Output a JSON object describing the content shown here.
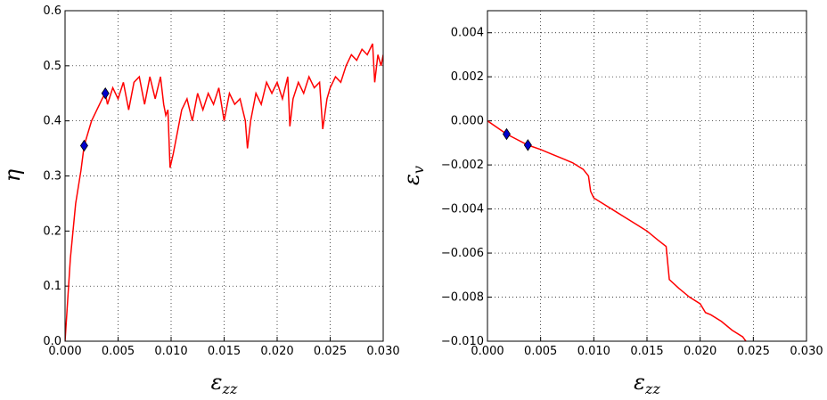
{
  "chart_data": [
    {
      "type": "line",
      "ylabel": "η",
      "xlabel": {
        "main": "ε",
        "sub": "zz"
      },
      "color": "#ff0000",
      "marker_color": "#0000cc",
      "grid": true,
      "xlim": [
        0,
        0.03
      ],
      "ylim": [
        0,
        0.6
      ],
      "xticks": [
        {
          "value": 0,
          "label": "0.000"
        },
        {
          "value": 0.005,
          "label": "0.005"
        },
        {
          "value": 0.01,
          "label": "0.010"
        },
        {
          "value": 0.015,
          "label": "0.015"
        },
        {
          "value": 0.02,
          "label": "0.020"
        },
        {
          "value": 0.025,
          "label": "0.025"
        },
        {
          "value": 0.03,
          "label": "0.030"
        }
      ],
      "yticks": [
        {
          "value": 0,
          "label": "0.0"
        },
        0.1,
        0.2,
        0.3,
        0.4,
        0.5,
        0.6
      ],
      "x": [
        0,
        0.0005,
        0.001,
        0.0015,
        0.0018,
        0.0025,
        0.003,
        0.0035,
        0.0038,
        0.004,
        0.0045,
        0.005,
        0.0055,
        0.006,
        0.0065,
        0.007,
        0.0075,
        0.008,
        0.0085,
        0.009,
        0.0093,
        0.0095,
        0.0097,
        0.0099,
        0.0102,
        0.0105,
        0.011,
        0.0115,
        0.012,
        0.0125,
        0.013,
        0.0135,
        0.014,
        0.0145,
        0.015,
        0.0155,
        0.016,
        0.0165,
        0.017,
        0.0172,
        0.0175,
        0.018,
        0.0185,
        0.019,
        0.0195,
        0.02,
        0.0205,
        0.021,
        0.0212,
        0.0215,
        0.022,
        0.0225,
        0.023,
        0.0235,
        0.024,
        0.0243,
        0.0247,
        0.025,
        0.0255,
        0.026,
        0.0265,
        0.027,
        0.0275,
        0.028,
        0.0285,
        0.029,
        0.0292,
        0.0295,
        0.0298,
        0.03
      ],
      "values": [
        0,
        0.15,
        0.25,
        0.31,
        0.355,
        0.4,
        0.42,
        0.44,
        0.45,
        0.43,
        0.46,
        0.44,
        0.47,
        0.42,
        0.47,
        0.48,
        0.43,
        0.48,
        0.44,
        0.48,
        0.43,
        0.41,
        0.42,
        0.315,
        0.34,
        0.37,
        0.42,
        0.44,
        0.4,
        0.45,
        0.42,
        0.45,
        0.43,
        0.46,
        0.4,
        0.45,
        0.43,
        0.44,
        0.4,
        0.35,
        0.4,
        0.45,
        0.43,
        0.47,
        0.45,
        0.47,
        0.44,
        0.48,
        0.39,
        0.44,
        0.47,
        0.45,
        0.48,
        0.46,
        0.47,
        0.385,
        0.44,
        0.46,
        0.48,
        0.47,
        0.5,
        0.52,
        0.51,
        0.53,
        0.52,
        0.54,
        0.47,
        0.52,
        0.5,
        0.52
      ],
      "markers": {
        "x": [
          0.0018,
          0.0038
        ],
        "values": [
          0.355,
          0.45
        ]
      }
    },
    {
      "type": "line",
      "ylabel": {
        "main": "ε",
        "sub": "v"
      },
      "xlabel": {
        "main": "ε",
        "sub": "zz"
      },
      "color": "#ff0000",
      "marker_color": "#0000cc",
      "grid": true,
      "xlim": [
        0,
        0.03
      ],
      "ylim": [
        -0.01,
        0.005
      ],
      "xticks": [
        {
          "value": 0,
          "label": "0.000"
        },
        {
          "value": 0.005,
          "label": "0.005"
        },
        {
          "value": 0.01,
          "label": "0.010"
        },
        {
          "value": 0.015,
          "label": "0.015"
        },
        {
          "value": 0.02,
          "label": "0.020"
        },
        {
          "value": 0.025,
          "label": "0.025"
        },
        {
          "value": 0.03,
          "label": "0.030"
        }
      ],
      "yticks": [
        {
          "value": -0.01,
          "label": "−0.010"
        },
        {
          "value": -0.008,
          "label": "−0.008"
        },
        {
          "value": -0.006,
          "label": "−0.006"
        },
        {
          "value": -0.004,
          "label": "−0.004"
        },
        {
          "value": -0.002,
          "label": "−0.002"
        },
        {
          "value": 0,
          "label": "0.000"
        },
        0.002,
        0.004
      ],
      "x": [
        0,
        0.0018,
        0.0038,
        0.005,
        0.006,
        0.007,
        0.008,
        0.009,
        0.0095,
        0.0097,
        0.01,
        0.011,
        0.012,
        0.013,
        0.014,
        0.015,
        0.016,
        0.0168,
        0.0171,
        0.018,
        0.019,
        0.02,
        0.0205,
        0.021,
        0.022,
        0.023,
        0.024,
        0.0243
      ],
      "values": [
        0,
        -0.0006,
        -0.0011,
        -0.0013,
        -0.0015,
        -0.0017,
        -0.0019,
        -0.0022,
        -0.0025,
        -0.0032,
        -0.0035,
        -0.0038,
        -0.0041,
        -0.0044,
        -0.0047,
        -0.005,
        -0.0054,
        -0.0057,
        -0.0072,
        -0.0076,
        -0.008,
        -0.0083,
        -0.0087,
        -0.0088,
        -0.0091,
        -0.0095,
        -0.0098,
        -0.01
      ],
      "markers": {
        "x": [
          0.0018,
          0.0038
        ],
        "values": [
          -0.0006,
          -0.0011
        ]
      }
    }
  ]
}
